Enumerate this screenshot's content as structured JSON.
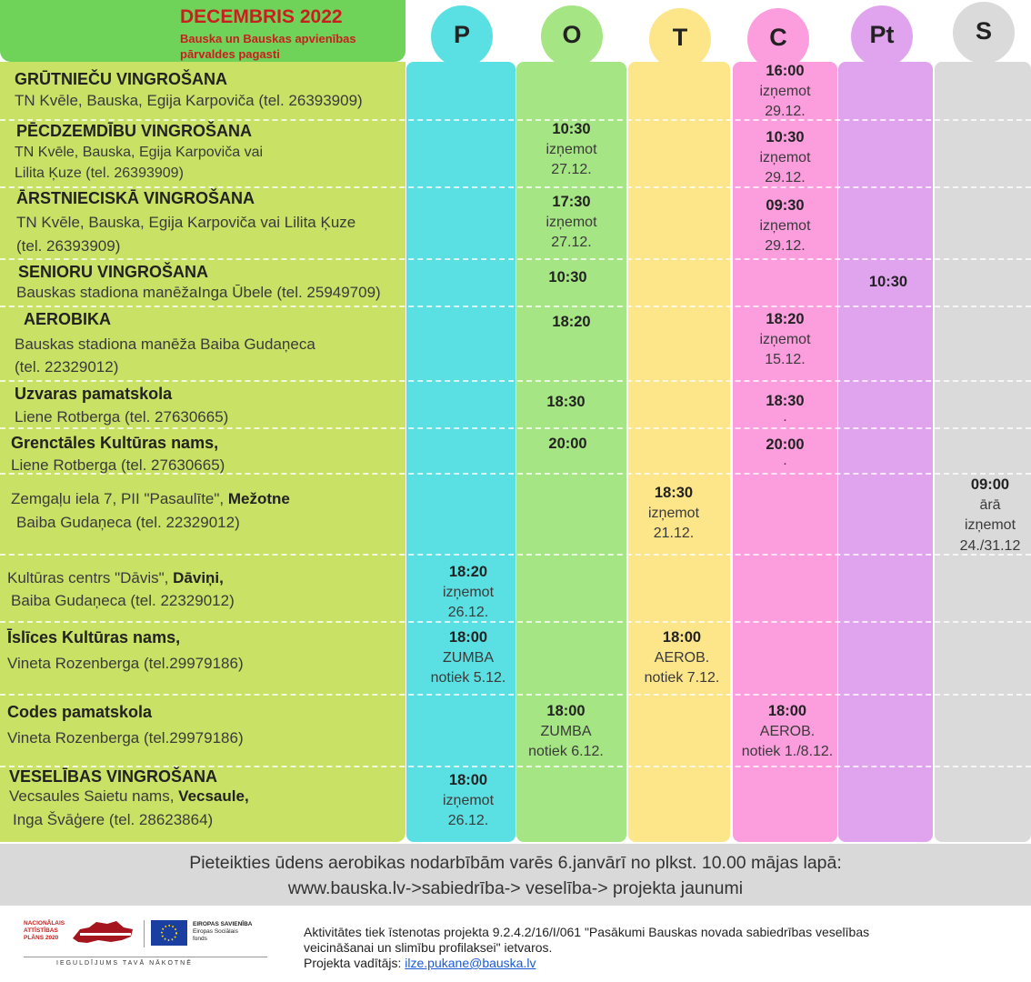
{
  "header": {
    "title": "DECEMBRIS 2022",
    "subtitle": "Bauska un Bauskas apvienības pārvaldes pagasti"
  },
  "days": [
    {
      "letter": "P",
      "color": "#5ae0e2"
    },
    {
      "letter": "O",
      "color": "#a6e584"
    },
    {
      "letter": "T",
      "color": "#fde58a"
    },
    {
      "letter": "C",
      "color": "#fc9dde"
    },
    {
      "letter": "Pt",
      "color": "#e0a4ee"
    },
    {
      "letter": "S",
      "color": "#dadada"
    }
  ],
  "activities": [
    {
      "title": "GRŪTNIEČU VINGROŠANA",
      "desc1": "TN Kvēle, Bauska, Egija Karpoviča (tel. 26393909)"
    },
    {
      "title": "PĒCDZEMDĪBU VINGROŠANA",
      "desc1": "TN Kvēle, Bauska, Egija Karpoviča vai",
      "desc2": "Lilita Ķuze (tel. 26393909)"
    },
    {
      "title": "ĀRSTNIECISKĀ VINGROŠANA",
      "desc1": "TN Kvēle, Bauska, Egija Karpoviča vai Lilita Ķuze",
      "desc2": "(tel. 26393909)"
    },
    {
      "title": "SENIORU VINGROŠANA",
      "desc1": "Bauskas stadiona manēžaInga Ūbele (tel. 25949709)"
    },
    {
      "title": "AEROBIKA",
      "desc1": "Bauskas stadiona manēža Baiba Gudaņeca",
      "desc2": "(tel. 22329012)"
    },
    {
      "title": "Uzvaras pamatskola",
      "desc1": "Liene Rotberga (tel. 27630665)"
    },
    {
      "title": "Grenctāles Kultūras nams,",
      "desc1": "Liene Rotberga (tel. 27630665)"
    },
    {
      "desc1": "Zemgaļu iela 7,  PII \"Pasaulīte\", ",
      "desc1_bold": "Mežotne",
      "desc2": "Baiba Gudaņeca (tel. 22329012)"
    },
    {
      "desc1": "Kultūras centrs \"Dāvis\", ",
      "desc1_bold": "Dāviņi,",
      "desc2": "Baiba Gudaņeca (tel. 22329012)"
    },
    {
      "title": "Īslīces Kultūras nams,",
      "desc1": "Vineta Rozenberga (tel.29979186)"
    },
    {
      "title": "Codes pamatskola",
      "desc1": "Vineta Rozenberga (tel.29979186)"
    },
    {
      "title": "VESELĪBAS VINGROŠANA",
      "desc1": "Vecsaules  Saietu nams, ",
      "desc1_bold": "Vecsaule,",
      "desc2": "Inga Švāģere (tel. 28623864)"
    }
  ],
  "schedule": {
    "r1_c": {
      "time": "16:00",
      "l1": "izņemot",
      "l2": "29.12."
    },
    "r2_o": {
      "time": "10:30",
      "l1": "izņemot",
      "l2": "27.12."
    },
    "r2_c": {
      "time": "10:30",
      "l1": "izņemot",
      "l2": "29.12."
    },
    "r3_o": {
      "time": "17:30",
      "l1": "izņemot",
      "l2": "27.12."
    },
    "r3_c": {
      "time": "09:30",
      "l1": "izņemot",
      "l2": "29.12."
    },
    "r4_o": {
      "time": "10:30"
    },
    "r4_pt": {
      "time": "10:30"
    },
    "r5_o": {
      "time": "18:20"
    },
    "r5_c": {
      "time": "18:20",
      "l1": "izņemot",
      "l2": "15.12."
    },
    "r6_o": {
      "time": "18:30"
    },
    "r6_c": {
      "time": "18:30",
      "l1": "."
    },
    "r7_o": {
      "time": "20:00"
    },
    "r7_c": {
      "time": "20:00",
      "l1": "."
    },
    "r8_t": {
      "time": "18:30",
      "l1": "izņemot",
      "l2": "21.12."
    },
    "r8_s": {
      "time": "09:00",
      "l1": "ārā",
      "l2": "izņemot",
      "l3": "24./31.12"
    },
    "r9_p": {
      "time": "18:20",
      "l1": "izņemot",
      "l2": "26.12."
    },
    "r10_p": {
      "time": "18:00",
      "l1": "ZUMBA",
      "l2": "notiek 5.12."
    },
    "r10_t": {
      "time": "18:00",
      "l1": "AEROB.",
      "l2": "notiek 7.12."
    },
    "r11_o": {
      "time": "18:00",
      "l1": "ZUMBA",
      "l2": "notiek 6.12."
    },
    "r11_c": {
      "time": "18:00",
      "l1": "AEROB.",
      "l2": "notiek 1./8.12."
    },
    "r12_p": {
      "time": "18:00",
      "l1": "izņemot",
      "l2": "26.12."
    }
  },
  "banner": {
    "line1": "Pieteikties ūdens aerobikas nodarbībām varēs 6.janvārī no plkst. 10.00 mājas lapā:",
    "line2": "www.bauska.lv->sabiedrība-> veselība-> projekta jaunumi"
  },
  "footer": {
    "line1": "Aktivitātes tiek īstenotas projekta 9.2.4.2/16/I/061 \"Pasākumi Bauskas novada sabiedrības veselības",
    "line2": "veicināšanai un slimību profilaksei\" ietvaros.",
    "line3_prefix": "Projekta vadītājs: ",
    "email": "ilze.pukane@bauska.lv"
  },
  "logos": {
    "nap_text1": "NACIONĀLAIS",
    "nap_text2": "ATTĪSTĪBAS",
    "nap_text3": "PLĀNS 2020",
    "eu_title": "EIROPAS SAVIENĪBA",
    "eu_sub1": "Eiropas Sociālais",
    "eu_sub2": "fonds",
    "motto": "IEGULDĪJUMS TAVĀ NĀKOTNĒ"
  }
}
